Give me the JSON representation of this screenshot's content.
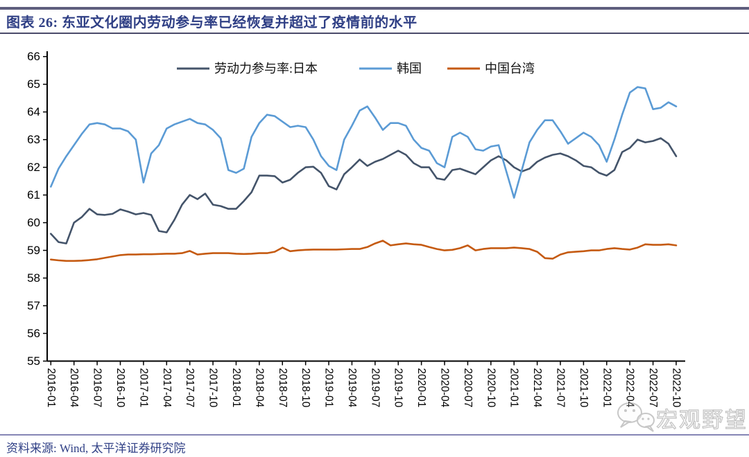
{
  "header": {
    "title": "图表 26: 东亚文化圈内劳动参与率已经恢复并超过了疫情前的水平"
  },
  "footer": {
    "source": "资料来源: Wind, 太平洋证券研究院"
  },
  "watermark": {
    "icon": "wechat-icon",
    "text": "宏观野望"
  },
  "ui_colors": {
    "title_text": "#2F3F85",
    "rule_top": "#5E5E7E",
    "rule_sub": "#4A4A6A",
    "rule_footer": "#8585B5",
    "axis": "#000000",
    "watermark_gray": "#8F8F8F"
  },
  "chart_data": {
    "type": "line",
    "title": "东亚文化圈内劳动参与率已经恢复并超过了疫情前的水平",
    "x_start": "2016-01",
    "x_end": "2022-10",
    "x_frequency": "monthly",
    "n_points": 82,
    "ylim": [
      55,
      66
    ],
    "grid": false,
    "legend_position": "top-center",
    "y_ticks": [
      55,
      56,
      57,
      58,
      59,
      60,
      61,
      62,
      63,
      64,
      65,
      66
    ],
    "x_tick_labels": [
      "2016-01",
      "2016-04",
      "2016-07",
      "2016-10",
      "2017-01",
      "2017-04",
      "2017-07",
      "2017-10",
      "2018-01",
      "2018-04",
      "2018-07",
      "2018-10",
      "2019-01",
      "2019-04",
      "2019-07",
      "2019-10",
      "2020-01",
      "2020-04",
      "2020-07",
      "2020-10",
      "2021-01",
      "2021-04",
      "2021-07",
      "2021-10",
      "2022-01",
      "2022-04",
      "2022-07",
      "2022-10"
    ],
    "series": [
      {
        "key": "japan",
        "name": "劳动力参与率:日本",
        "color": "#44546A",
        "values": [
          59.6,
          59.3,
          59.25,
          60.0,
          60.2,
          60.5,
          60.3,
          60.28,
          60.32,
          60.48,
          60.4,
          60.3,
          60.35,
          60.28,
          59.7,
          59.65,
          60.1,
          60.65,
          61.0,
          60.85,
          61.05,
          60.65,
          60.6,
          60.5,
          60.5,
          60.78,
          61.1,
          61.7,
          61.7,
          61.68,
          61.45,
          61.55,
          61.8,
          62.0,
          62.02,
          61.8,
          61.32,
          61.2,
          61.75,
          62.0,
          62.28,
          62.05,
          62.2,
          62.3,
          62.45,
          62.6,
          62.45,
          62.15,
          62.0,
          62.0,
          61.6,
          61.55,
          61.9,
          61.95,
          61.85,
          61.75,
          62.0,
          62.25,
          62.4,
          62.25,
          62.0,
          61.85,
          61.95,
          62.2,
          62.35,
          62.45,
          62.5,
          62.4,
          62.25,
          62.05,
          62.0,
          61.8,
          61.7,
          61.9,
          62.55,
          62.7,
          63.0,
          62.9,
          62.95,
          63.05,
          62.85,
          62.4
        ]
      },
      {
        "key": "korea",
        "name": "韩国",
        "color": "#5B9BD5",
        "values": [
          61.3,
          61.95,
          62.4,
          62.8,
          63.2,
          63.55,
          63.6,
          63.55,
          63.4,
          63.4,
          63.3,
          63.0,
          61.45,
          62.5,
          62.8,
          63.4,
          63.55,
          63.65,
          63.75,
          63.6,
          63.55,
          63.35,
          63.05,
          61.9,
          61.8,
          61.95,
          63.1,
          63.6,
          63.9,
          63.85,
          63.65,
          63.45,
          63.5,
          63.45,
          63.0,
          62.4,
          62.05,
          61.9,
          63.0,
          63.5,
          64.05,
          64.2,
          63.8,
          63.35,
          63.6,
          63.6,
          63.5,
          63.0,
          62.7,
          62.6,
          62.15,
          62.0,
          63.1,
          63.25,
          63.1,
          62.65,
          62.6,
          62.75,
          62.8,
          61.85,
          60.9,
          61.9,
          62.9,
          63.35,
          63.7,
          63.7,
          63.3,
          62.85,
          63.05,
          63.25,
          63.1,
          62.8,
          62.2,
          63.0,
          63.9,
          64.7,
          64.9,
          64.85,
          64.1,
          64.15,
          64.35,
          64.2
        ]
      },
      {
        "key": "taiwan",
        "name": "中国台湾",
        "color": "#C55A11",
        "values": [
          58.67,
          58.64,
          58.62,
          58.62,
          58.63,
          58.65,
          58.68,
          58.73,
          58.78,
          58.83,
          58.85,
          58.85,
          58.86,
          58.86,
          58.87,
          58.88,
          58.88,
          58.9,
          58.98,
          58.85,
          58.88,
          58.9,
          58.9,
          58.9,
          58.88,
          58.87,
          58.88,
          58.9,
          58.9,
          58.95,
          59.1,
          58.97,
          59.0,
          59.02,
          59.03,
          59.03,
          59.03,
          59.03,
          59.04,
          59.05,
          59.05,
          59.12,
          59.25,
          59.35,
          59.18,
          59.22,
          59.25,
          59.22,
          59.2,
          59.12,
          59.05,
          59.0,
          59.02,
          59.08,
          59.18,
          59.0,
          59.05,
          59.08,
          59.08,
          59.08,
          59.1,
          59.08,
          59.05,
          58.95,
          58.72,
          58.7,
          58.85,
          58.93,
          58.95,
          58.97,
          59.0,
          59.0,
          59.05,
          59.08,
          59.05,
          59.03,
          59.1,
          59.22,
          59.2,
          59.2,
          59.22,
          59.18
        ]
      }
    ]
  }
}
